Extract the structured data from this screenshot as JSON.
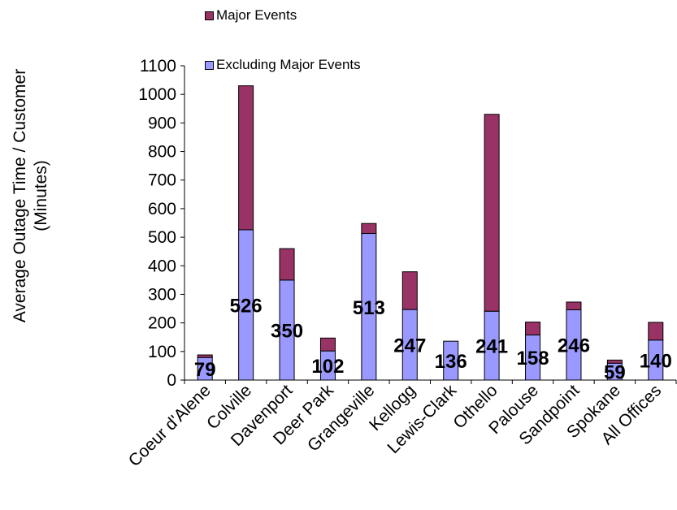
{
  "chart_data": {
    "type": "bar",
    "stacked": true,
    "categories": [
      "Coeur d'Alene",
      "Colville",
      "Davenport",
      "Deer Park",
      "Grangeville",
      "Kellogg",
      "Lewis-Clark",
      "Othello",
      "Palouse",
      "Sandpoint",
      "Spokane",
      "All Offices"
    ],
    "series": [
      {
        "name": "Excluding Major Events",
        "values": [
          79,
          526,
          350,
          102,
          513,
          247,
          136,
          241,
          158,
          246,
          59,
          140
        ],
        "color": "#9999ff"
      },
      {
        "name": "Major Events",
        "values": [
          9,
          504,
          110,
          45,
          35,
          132,
          0,
          689,
          45,
          27,
          11,
          62
        ],
        "color": "#993366"
      }
    ],
    "data_labels": [
      "79",
      "526",
      "350",
      "102",
      "513",
      "247",
      "136",
      "241",
      "158",
      "246",
      "59",
      "140"
    ],
    "ylabel": "Average Outage Time / Customer (Minutes)",
    "ylabel_lines": [
      "Average Outage Time / Customer",
      "(Minutes)"
    ],
    "yticks": [
      0,
      100,
      200,
      300,
      400,
      500,
      600,
      700,
      800,
      900,
      1000,
      1100
    ],
    "ylim": [
      0,
      1100
    ],
    "legend_position": "top",
    "grid": false
  }
}
